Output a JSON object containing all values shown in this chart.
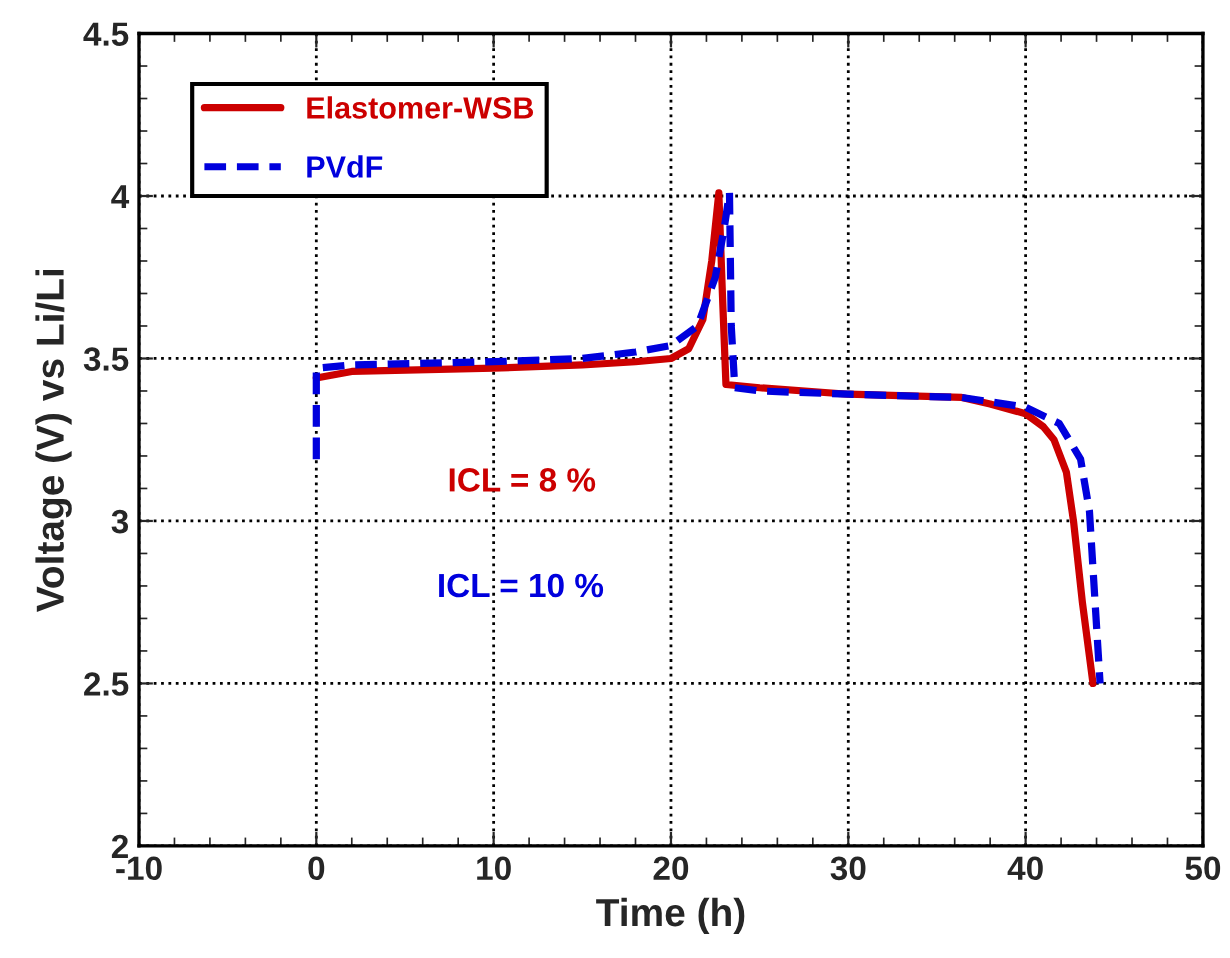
{
  "chart_data": {
    "type": "line",
    "xlabel": "Time (h)",
    "ylabel": "Voltage (V) vs Li/Li",
    "xlim": [
      -10,
      50
    ],
    "xticks": [
      -10,
      0,
      10,
      20,
      30,
      40,
      50
    ],
    "ylim": [
      2,
      4.5
    ],
    "yticks": [
      2,
      2.5,
      3,
      3.5,
      4,
      4.5
    ],
    "grid": true,
    "legend": "top left",
    "annotations": [
      "ICL = 8 %",
      "ICL = 10 %"
    ],
    "series": [
      {
        "name": "Elastomer-WSB",
        "color": "#cc0000",
        "line_style": "solid",
        "x": [
          0,
          2,
          10,
          15,
          18,
          20,
          21,
          21.8,
          22.3,
          22.7,
          22.9,
          23.1,
          25,
          30,
          36.4,
          38,
          40,
          41,
          41.6,
          42.3,
          42.7,
          43.2,
          43.8
        ],
        "values": [
          3.44,
          3.46,
          3.47,
          3.48,
          3.49,
          3.5,
          3.53,
          3.62,
          3.8,
          4.01,
          3.7,
          3.42,
          3.41,
          3.39,
          3.38,
          3.36,
          3.33,
          3.29,
          3.25,
          3.15,
          3.0,
          2.75,
          2.5
        ]
      },
      {
        "name": "PVdF",
        "color": "#0000dd",
        "line_style": "dashed",
        "x": [
          0,
          0,
          2,
          10,
          15,
          18,
          20,
          21.5,
          22.5,
          23.0,
          23.3,
          23.4,
          23.6,
          25,
          30,
          36.4,
          40,
          41.9,
          43.1,
          43.6,
          44.2
        ],
        "values": [
          3.19,
          3.47,
          3.48,
          3.49,
          3.5,
          3.52,
          3.54,
          3.6,
          3.75,
          3.9,
          4.01,
          3.6,
          3.41,
          3.4,
          3.39,
          3.38,
          3.35,
          3.3,
          3.19,
          3.03,
          2.5
        ]
      }
    ]
  }
}
